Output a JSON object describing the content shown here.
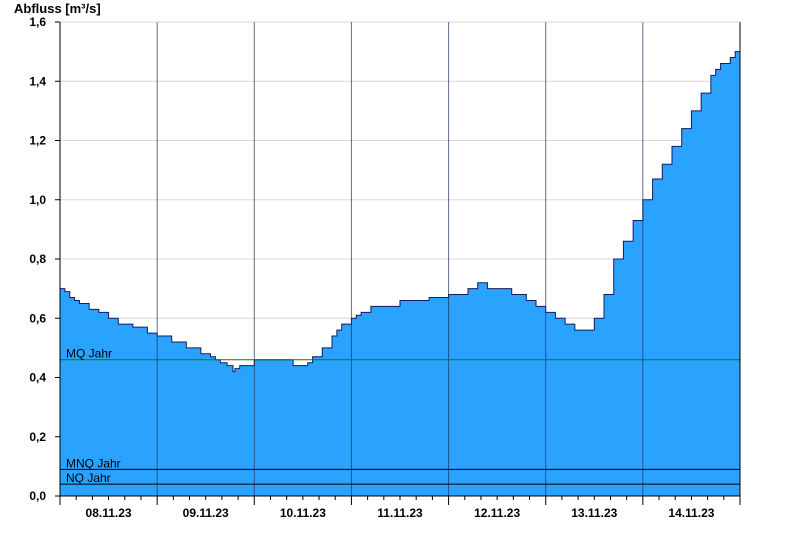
{
  "chart_data": {
    "type": "area",
    "ylabel": "Abfluss [m³/s]",
    "ylim": [
      0,
      1.6
    ],
    "yticks": [
      0.0,
      0.2,
      0.4,
      0.6,
      0.8,
      1.0,
      1.2,
      1.4,
      1.6
    ],
    "ytick_labels": [
      "0,0",
      "0,2",
      "0,4",
      "0,6",
      "0,8",
      "1,0",
      "1,2",
      "1,4",
      "1,6"
    ],
    "xlim": [
      0,
      7
    ],
    "x_unit": "days since 08.11.23 00:00",
    "x_day_labels": [
      "08.11.23",
      "09.11.23",
      "10.11.23",
      "11.11.23",
      "12.11.23",
      "13.11.23",
      "14.11.23"
    ],
    "grid": true,
    "colors": {
      "fill": "#29a3ff",
      "line": "#1a1a5e",
      "mq_line": "#008000",
      "ref_line": "#000000",
      "grid": "#d8d8d8"
    },
    "reference_lines": [
      {
        "name": "MQ Jahr",
        "value": 0.46
      },
      {
        "name": "MNQ Jahr",
        "value": 0.09
      },
      {
        "name": "NQ Jahr",
        "value": 0.04
      }
    ],
    "series": [
      {
        "x": [
          0.0,
          0.03,
          0.05,
          0.1,
          0.15,
          0.2,
          0.3,
          0.4,
          0.5,
          0.6,
          0.75,
          0.9,
          1.0,
          1.15,
          1.3,
          1.45,
          1.55,
          1.6,
          1.65,
          1.72,
          1.78,
          1.8,
          1.85,
          1.9,
          1.95,
          2.0,
          2.2,
          2.4,
          2.55,
          2.6,
          2.7,
          2.8,
          2.85,
          2.9,
          3.0,
          3.05,
          3.1,
          3.2,
          3.3,
          3.5,
          3.8,
          4.0,
          4.2,
          4.3,
          4.4,
          4.5,
          4.65,
          4.8,
          4.9,
          5.0,
          5.1,
          5.2,
          5.3,
          5.4,
          5.5,
          5.6,
          5.7,
          5.8,
          5.9,
          6.0,
          6.1,
          6.2,
          6.3,
          6.4,
          6.5,
          6.6,
          6.7,
          6.75,
          6.8,
          6.9,
          6.95,
          7.0
        ],
        "y": [
          0.7,
          0.7,
          0.69,
          0.67,
          0.66,
          0.65,
          0.63,
          0.62,
          0.6,
          0.58,
          0.57,
          0.55,
          0.54,
          0.52,
          0.5,
          0.48,
          0.47,
          0.46,
          0.45,
          0.44,
          0.42,
          0.43,
          0.44,
          0.44,
          0.44,
          0.46,
          0.46,
          0.44,
          0.45,
          0.47,
          0.5,
          0.54,
          0.56,
          0.58,
          0.6,
          0.61,
          0.62,
          0.64,
          0.64,
          0.66,
          0.67,
          0.68,
          0.7,
          0.72,
          0.7,
          0.7,
          0.68,
          0.66,
          0.64,
          0.62,
          0.6,
          0.58,
          0.56,
          0.56,
          0.6,
          0.68,
          0.8,
          0.86,
          0.93,
          1.0,
          1.07,
          1.12,
          1.18,
          1.24,
          1.3,
          1.36,
          1.42,
          1.44,
          1.46,
          1.48,
          1.5,
          1.52
        ]
      }
    ]
  }
}
